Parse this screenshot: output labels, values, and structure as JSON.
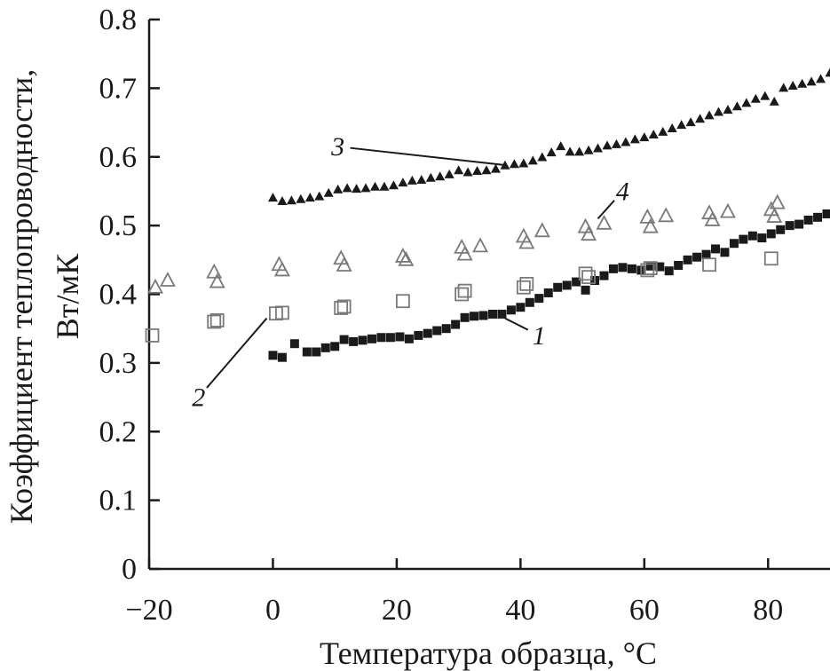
{
  "chart_data": {
    "type": "scatter",
    "xlabel": "Температура образца, °C",
    "ylabel_line1": "Коэффициент теплопроводности,",
    "ylabel_line2": "Вт/мК",
    "xlim": [
      -20,
      90
    ],
    "ylim": [
      0,
      0.8
    ],
    "x_ticks": [
      -20,
      0,
      20,
      40,
      60,
      80
    ],
    "x_tick_labels": [
      "−20",
      "0",
      "20",
      "40",
      "60",
      "80"
    ],
    "y_ticks": [
      0,
      0.1,
      0.2,
      0.3,
      0.4,
      0.5,
      0.6,
      0.7,
      0.8
    ],
    "y_tick_labels": [
      "0",
      "0.1",
      "0.2",
      "0.3",
      "0.4",
      "0.5",
      "0.6",
      "0.7",
      "0.8"
    ],
    "grid": false,
    "legend": "none",
    "series": [
      {
        "id": "1",
        "label": "1",
        "marker": "filled-square",
        "color": "#1a1a1a",
        "label_x": 43,
        "label_y": 0.34,
        "arrow_to": [
          37.5,
          0.365
        ],
        "points": [
          [
            0,
            0.311
          ],
          [
            1.5,
            0.308
          ],
          [
            3.5,
            0.328
          ],
          [
            5.5,
            0.316
          ],
          [
            7,
            0.316
          ],
          [
            8.5,
            0.322
          ],
          [
            10,
            0.324
          ],
          [
            11.5,
            0.334
          ],
          [
            13,
            0.331
          ],
          [
            14.5,
            0.333
          ],
          [
            16,
            0.335
          ],
          [
            17.5,
            0.337
          ],
          [
            19,
            0.337
          ],
          [
            20.5,
            0.338
          ],
          [
            22,
            0.335
          ],
          [
            23.5,
            0.34
          ],
          [
            25,
            0.343
          ],
          [
            26.5,
            0.347
          ],
          [
            28,
            0.35
          ],
          [
            29.5,
            0.356
          ],
          [
            31,
            0.366
          ],
          [
            32.5,
            0.368
          ],
          [
            34,
            0.369
          ],
          [
            35.5,
            0.371
          ],
          [
            37,
            0.371
          ],
          [
            38.5,
            0.377
          ],
          [
            40,
            0.381
          ],
          [
            41.5,
            0.388
          ],
          [
            43,
            0.394
          ],
          [
            44.5,
            0.402
          ],
          [
            46,
            0.41
          ],
          [
            47.5,
            0.413
          ],
          [
            49,
            0.418
          ],
          [
            50.5,
            0.406
          ],
          [
            52,
            0.42
          ],
          [
            53.5,
            0.427
          ],
          [
            55,
            0.437
          ],
          [
            56.5,
            0.439
          ],
          [
            58,
            0.437
          ],
          [
            59.5,
            0.435
          ],
          [
            61,
            0.441
          ],
          [
            62.5,
            0.44
          ],
          [
            64,
            0.434
          ],
          [
            65.5,
            0.442
          ],
          [
            67,
            0.45
          ],
          [
            68.5,
            0.454
          ],
          [
            70,
            0.458
          ],
          [
            71.5,
            0.466
          ],
          [
            73,
            0.461
          ],
          [
            74.5,
            0.474
          ],
          [
            76,
            0.48
          ],
          [
            77.5,
            0.485
          ],
          [
            79,
            0.482
          ],
          [
            80.5,
            0.488
          ],
          [
            82,
            0.494
          ],
          [
            83.5,
            0.5
          ],
          [
            85,
            0.502
          ],
          [
            86.5,
            0.508
          ],
          [
            88,
            0.512
          ],
          [
            89.5,
            0.517
          ]
        ]
      },
      {
        "id": "2",
        "label": "2",
        "marker": "open-square",
        "color": "#7a7a7a",
        "label_x": -12,
        "label_y": 0.25,
        "arrow_to": [
          -1,
          0.365
        ],
        "points": [
          [
            -19.5,
            0.34
          ],
          [
            -9.5,
            0.36
          ],
          [
            -9,
            0.362
          ],
          [
            0.5,
            0.372
          ],
          [
            1.5,
            0.373
          ],
          [
            11,
            0.38
          ],
          [
            11.5,
            0.382
          ],
          [
            21,
            0.39
          ],
          [
            30.5,
            0.4
          ],
          [
            31,
            0.405
          ],
          [
            40.5,
            0.41
          ],
          [
            41,
            0.415
          ],
          [
            50.5,
            0.43
          ],
          [
            51,
            0.425
          ],
          [
            60.5,
            0.435
          ],
          [
            61,
            0.438
          ],
          [
            70.5,
            0.443
          ],
          [
            80.5,
            0.452
          ]
        ]
      },
      {
        "id": "3",
        "label": "3",
        "marker": "filled-triangle",
        "color": "#1a1a1a",
        "label_x": 10.5,
        "label_y": 0.615,
        "arrow_to": [
          37.5,
          0.588
        ],
        "points": [
          [
            0,
            0.54
          ],
          [
            1.5,
            0.535
          ],
          [
            3,
            0.536
          ],
          [
            4.5,
            0.538
          ],
          [
            6,
            0.54
          ],
          [
            7.5,
            0.542
          ],
          [
            9,
            0.547
          ],
          [
            10.5,
            0.552
          ],
          [
            12,
            0.554
          ],
          [
            13.5,
            0.553
          ],
          [
            15,
            0.554
          ],
          [
            16.5,
            0.556
          ],
          [
            18,
            0.556
          ],
          [
            19.5,
            0.558
          ],
          [
            21,
            0.562
          ],
          [
            22.5,
            0.565
          ],
          [
            24,
            0.566
          ],
          [
            25.5,
            0.569
          ],
          [
            27,
            0.571
          ],
          [
            28.5,
            0.574
          ],
          [
            30,
            0.58
          ],
          [
            31.5,
            0.577
          ],
          [
            33,
            0.579
          ],
          [
            34.5,
            0.58
          ],
          [
            36,
            0.582
          ],
          [
            37.5,
            0.587
          ],
          [
            39,
            0.589
          ],
          [
            40.5,
            0.59
          ],
          [
            42,
            0.594
          ],
          [
            43.5,
            0.599
          ],
          [
            45,
            0.606
          ],
          [
            46.5,
            0.615
          ],
          [
            48,
            0.607
          ],
          [
            49.5,
            0.607
          ],
          [
            51,
            0.609
          ],
          [
            52.5,
            0.612
          ],
          [
            54,
            0.616
          ],
          [
            55.5,
            0.618
          ],
          [
            57,
            0.621
          ],
          [
            58.5,
            0.625
          ],
          [
            60,
            0.628
          ],
          [
            61.5,
            0.632
          ],
          [
            63,
            0.636
          ],
          [
            64.5,
            0.641
          ],
          [
            66,
            0.646
          ],
          [
            67.5,
            0.65
          ],
          [
            69,
            0.655
          ],
          [
            70.5,
            0.66
          ],
          [
            72,
            0.665
          ],
          [
            73.5,
            0.668
          ],
          [
            75,
            0.673
          ],
          [
            76.5,
            0.678
          ],
          [
            78,
            0.684
          ],
          [
            79.5,
            0.688
          ],
          [
            81,
            0.68
          ],
          [
            82.5,
            0.7
          ],
          [
            84,
            0.703
          ],
          [
            85.5,
            0.706
          ],
          [
            87,
            0.709
          ],
          [
            88.5,
            0.713
          ],
          [
            90,
            0.722
          ]
        ]
      },
      {
        "id": "4",
        "label": "4",
        "marker": "open-triangle",
        "color": "#7a7a7a",
        "label_x": 56.5,
        "label_y": 0.55,
        "arrow_to": [
          52.5,
          0.51
        ],
        "points": [
          [
            -19,
            0.41
          ],
          [
            -17,
            0.42
          ],
          [
            -9.5,
            0.432
          ],
          [
            -9,
            0.418
          ],
          [
            1,
            0.443
          ],
          [
            1.5,
            0.435
          ],
          [
            11,
            0.452
          ],
          [
            11.5,
            0.442
          ],
          [
            21,
            0.455
          ],
          [
            21.5,
            0.45
          ],
          [
            30.5,
            0.468
          ],
          [
            31,
            0.458
          ],
          [
            33.5,
            0.47
          ],
          [
            40.5,
            0.484
          ],
          [
            41,
            0.475
          ],
          [
            43.5,
            0.492
          ],
          [
            50.5,
            0.498
          ],
          [
            51,
            0.487
          ],
          [
            53.5,
            0.503
          ],
          [
            60.5,
            0.512
          ],
          [
            61,
            0.498
          ],
          [
            63.5,
            0.514
          ],
          [
            70.5,
            0.518
          ],
          [
            71,
            0.508
          ],
          [
            73.5,
            0.52
          ],
          [
            80.5,
            0.523
          ],
          [
            81,
            0.513
          ],
          [
            81.5,
            0.533
          ]
        ]
      }
    ]
  }
}
